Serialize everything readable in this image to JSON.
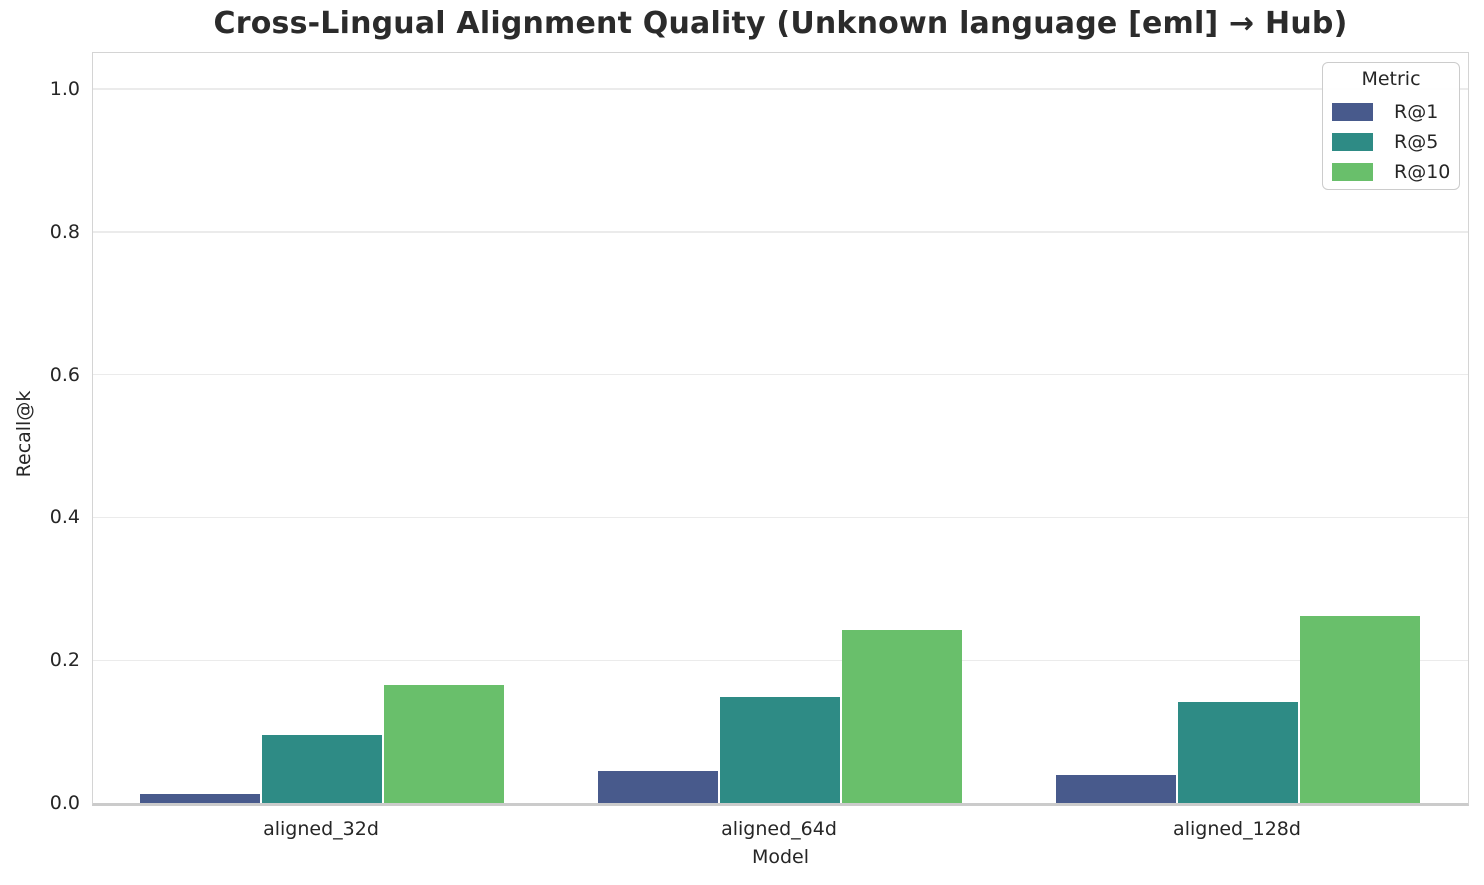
{
  "chart_data": {
    "type": "bar",
    "title": "Cross-Lingual Alignment Quality (Unknown language [eml] → Hub)",
    "xlabel": "Model",
    "ylabel": "Recall@k",
    "categories": [
      "aligned_32d",
      "aligned_64d",
      "aligned_128d"
    ],
    "series": [
      {
        "name": "R@1",
        "color": "#485a8c",
        "values": [
          0.012,
          0.045,
          0.039
        ]
      },
      {
        "name": "R@5",
        "color": "#2e8b85",
        "values": [
          0.095,
          0.148,
          0.142
        ]
      },
      {
        "name": "R@10",
        "color": "#69bf6b",
        "values": [
          0.165,
          0.242,
          0.262
        ]
      }
    ],
    "ylim": [
      0,
      1.05
    ],
    "yticks": [
      {
        "label": "0.0",
        "value": 0.0
      },
      {
        "label": "0.2",
        "value": 0.2
      },
      {
        "label": "0.4",
        "value": 0.4
      },
      {
        "label": "0.6",
        "value": 0.6
      },
      {
        "label": "0.8",
        "value": 0.8
      },
      {
        "label": "1.0",
        "value": 1.0
      }
    ],
    "grid": true,
    "legend": {
      "title": "Metric",
      "position": "upper right"
    }
  }
}
